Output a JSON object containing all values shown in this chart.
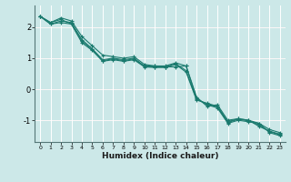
{
  "xlabel": "Humidex (Indice chaleur)",
  "bg_color": "#cce8e8",
  "grid_color_major": "#e8c8c8",
  "grid_color_minor": "#ffffff",
  "line_color": "#1a7a6e",
  "x_ticks": [
    0,
    1,
    2,
    3,
    4,
    5,
    6,
    7,
    8,
    9,
    10,
    11,
    12,
    13,
    14,
    15,
    16,
    17,
    18,
    19,
    20,
    21,
    22,
    23
  ],
  "ylim": [
    -1.7,
    2.7
  ],
  "xlim": [
    -0.5,
    23.5
  ],
  "yticks": [
    -1,
    0,
    1,
    2
  ],
  "series": [
    [
      2.35,
      2.1,
      2.15,
      2.1,
      1.5,
      1.25,
      0.9,
      0.95,
      0.9,
      0.95,
      0.72,
      0.7,
      0.7,
      0.8,
      0.55,
      -0.35,
      -0.45,
      -0.55,
      -1.05,
      -0.95,
      -1.0,
      -1.2,
      -1.35,
      -1.45
    ],
    [
      2.35,
      2.1,
      2.2,
      2.15,
      1.6,
      1.3,
      0.95,
      1.0,
      0.95,
      1.0,
      0.75,
      0.75,
      0.72,
      0.72,
      0.75,
      -0.3,
      -0.5,
      -0.6,
      -1.1,
      -1.0,
      -1.05,
      -1.1,
      -1.4,
      -1.5
    ],
    [
      2.35,
      2.15,
      2.3,
      2.2,
      1.7,
      1.4,
      1.1,
      1.05,
      1.0,
      1.05,
      0.8,
      0.75,
      0.75,
      0.85,
      0.75,
      -0.25,
      -0.55,
      -0.5,
      -1.0,
      -0.95,
      -1.0,
      -1.1,
      -1.3,
      -1.4
    ],
    [
      2.35,
      2.15,
      2.25,
      2.1,
      1.55,
      1.28,
      0.92,
      0.98,
      0.92,
      0.98,
      0.73,
      0.72,
      0.72,
      0.82,
      0.6,
      -0.32,
      -0.48,
      -0.57,
      -1.07,
      -0.97,
      -1.02,
      -1.15,
      -1.37,
      -1.47
    ]
  ]
}
